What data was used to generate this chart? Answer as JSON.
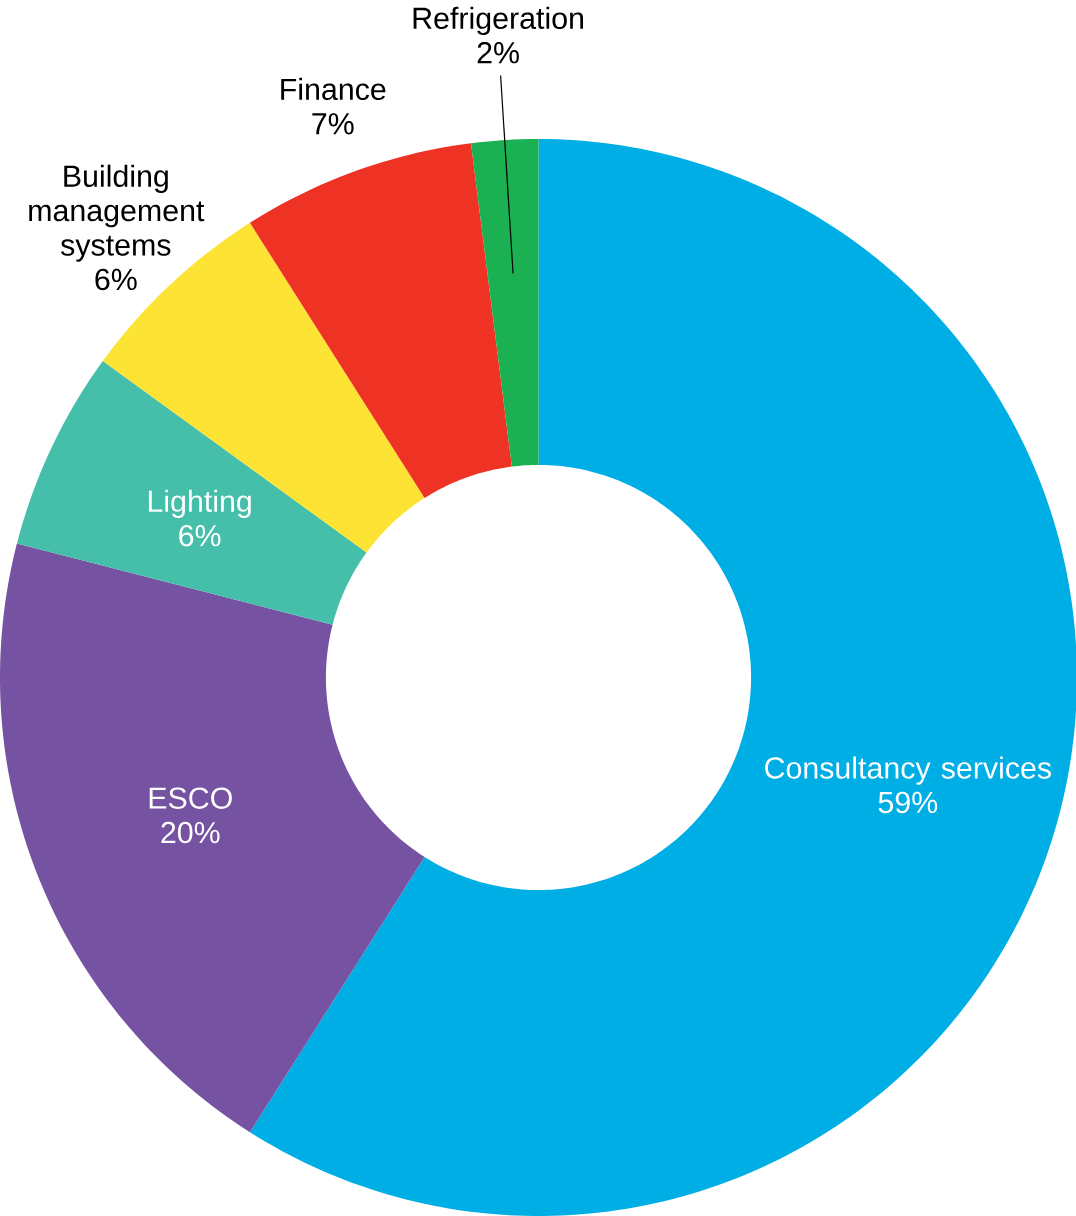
{
  "chart_data": {
    "type": "donut",
    "categories": [
      "Consultancy services",
      "ESCO",
      "Lighting",
      "Building management systems",
      "Finance",
      "Refrigeration"
    ],
    "values": [
      59,
      20,
      6,
      6,
      7,
      2
    ],
    "value_labels": [
      "59%",
      "20%",
      "6%",
      "6%",
      "7%",
      "2%"
    ],
    "colors": [
      "#00aee6",
      "#7652a2",
      "#45bfa9",
      "#fde333",
      "#ee3325",
      "#1bb152"
    ]
  }
}
